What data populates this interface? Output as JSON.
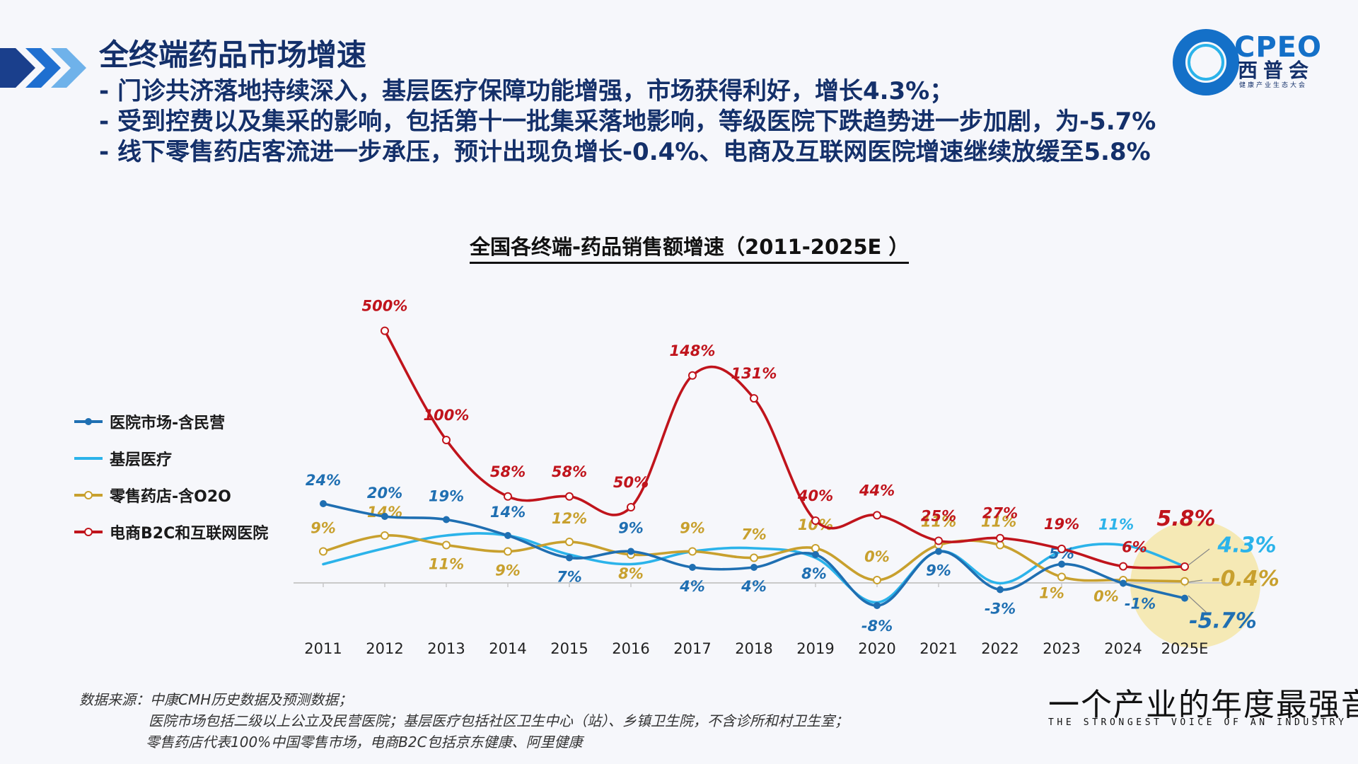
{
  "header": {
    "title": "全终端药品市场增速",
    "bullets": [
      "- 门诊共济落地持续深入，基层医疗保障功能增强，市场获得利好，增长4.3%；",
      "- 受到控费以及集采的影响，包括第十一批集采落地影响，等级医院下跌趋势进一步加剧，为-5.7%",
      "- 线下零售药店客流进一步承压，预计出现负增长-0.4%、电商及互联网医院增速继续放缓至5.8%"
    ]
  },
  "logo": {
    "name": "CPEO",
    "cn": "西普会",
    "sub": "健康产业生态大会"
  },
  "colors": {
    "hospital": "#1f6fb2",
    "primary": "#2bb3ea",
    "retail": "#c8a02e",
    "ecommerce": "#c0141c",
    "highlight": "#f5e6a8"
  },
  "chart_data": {
    "type": "line",
    "title": "全国各终端-药品销售额增速（2011-2025E ）",
    "categories": [
      "2011",
      "2012",
      "2013",
      "2014",
      "2015",
      "2016",
      "2017",
      "2018",
      "2019",
      "2020",
      "2021",
      "2022",
      "2023",
      "2024",
      "2025E"
    ],
    "series": [
      {
        "name": "医院市场-含民营",
        "color": "#1f6fb2",
        "values": [
          24,
          20,
          19,
          14,
          7,
          9,
          4,
          4,
          8,
          -8,
          9,
          -3,
          5,
          -1,
          -5.7
        ],
        "labels": [
          "24%",
          "20%",
          "19%",
          "14%",
          "7%",
          "9%",
          "4%",
          "4%",
          "8%",
          "-8%",
          "9%",
          "-3%",
          "5%",
          "-1%",
          "-5.7%"
        ]
      },
      {
        "name": "基层医疗",
        "color": "#2bb3ea",
        "values": [
          5,
          10,
          14,
          14,
          8,
          5,
          9,
          10,
          7,
          -7,
          9,
          -1,
          9,
          11,
          4.3
        ],
        "labels": [
          "",
          "",
          "",
          "",
          "",
          "",
          "",
          "",
          "",
          "",
          "",
          "",
          "",
          "11%",
          "4.3%"
        ]
      },
      {
        "name": "零售药店-含O2O",
        "color": "#c8a02e",
        "values": [
          9,
          14,
          11,
          9,
          12,
          8,
          9,
          7,
          10,
          0,
          11,
          11,
          1,
          0,
          -0.4
        ],
        "labels": [
          "9%",
          "14%",
          "11%",
          "9%",
          "12%",
          "8%",
          "9%",
          "7%",
          "10%",
          "0%",
          "11%",
          "11%",
          "1%",
          "0%",
          "-0.4%"
        ]
      },
      {
        "name": "电商B2C和互联网医院",
        "color": "#c0141c",
        "values": [
          null,
          500,
          100,
          58,
          58,
          50,
          148,
          131,
          40,
          44,
          25,
          27,
          19,
          6,
          5.8
        ],
        "labels": [
          "",
          "500%",
          "100%",
          "58%",
          "58%",
          "50%",
          "148%",
          "131%",
          "40%",
          "44%",
          "25%",
          "27%",
          "19%",
          "6%",
          "5.8%"
        ]
      }
    ]
  },
  "footnote": {
    "lines": [
      "数据来源：中康CMH历史数据及预测数据；",
      "医院市场包括二级以上公立及民营医院；基层医疗包括社区卫生中心（站）、乡镇卫生院，不含诊所和村卫生室；",
      "零售药店代表100%中国零售市场，电商B2C包括京东健康、阿里健康"
    ]
  },
  "slogan": {
    "cn": "一个产业的年度最强音",
    "en": "THE STRONGEST VOICE OF AN INDUSTRY"
  }
}
